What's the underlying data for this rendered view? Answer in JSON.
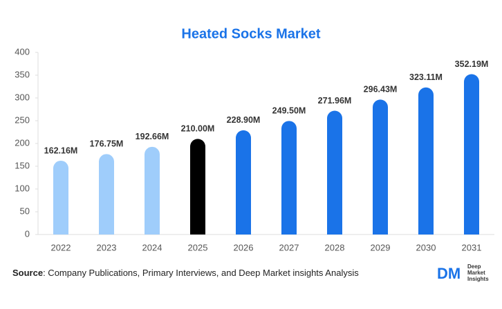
{
  "chart_data": {
    "type": "bar",
    "title": "Heated Socks Market",
    "categories": [
      "2022",
      "2023",
      "2024",
      "2025",
      "2026",
      "2027",
      "2028",
      "2029",
      "2030",
      "2031"
    ],
    "values": [
      162.16,
      176.75,
      192.66,
      210.0,
      228.9,
      249.5,
      271.96,
      296.43,
      323.11,
      352.19
    ],
    "value_labels": [
      "162.16M",
      "176.75M",
      "192.66M",
      "210.00M",
      "228.90M",
      "249.50M",
      "271.96M",
      "296.43M",
      "323.11M",
      "352.19M"
    ],
    "colors": [
      "#9fcdfb",
      "#9fcdfb",
      "#9fcdfb",
      "#000000",
      "#1a73e8",
      "#1a73e8",
      "#1a73e8",
      "#1a73e8",
      "#1a73e8",
      "#1a73e8"
    ],
    "ylim": [
      0,
      400
    ],
    "yticks": [
      0,
      50,
      100,
      150,
      200,
      250,
      300,
      350,
      400
    ],
    "grid": false
  },
  "footer": {
    "source_label": "Source",
    "source_text": ": Company Publications, Primary Interviews, and Deep Market insights Analysis",
    "logo_mark": "DM",
    "logo_lines": [
      "Deep",
      "Market",
      "Insights"
    ]
  }
}
